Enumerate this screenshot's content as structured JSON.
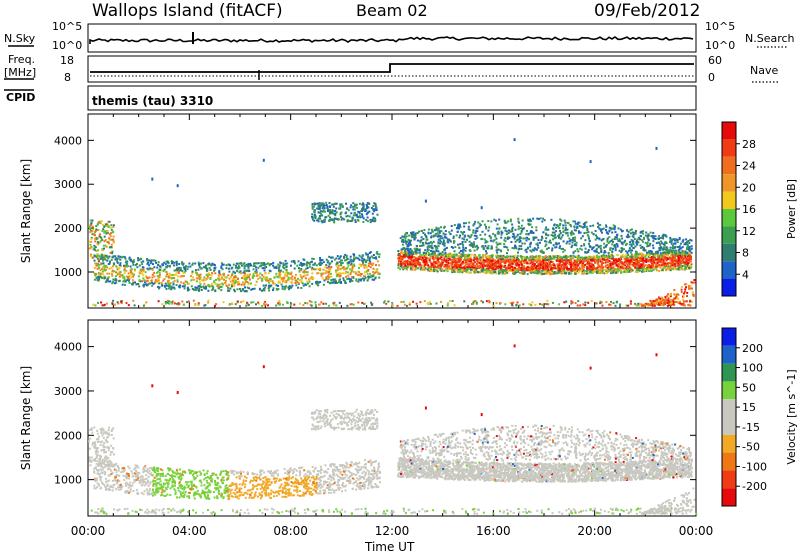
{
  "header": {
    "station": "Wallops Island (fitACF)",
    "beam": "Beam 02",
    "date": "09/Feb/2012"
  },
  "panels": {
    "nsky_label": "N.Sky",
    "nsearch_label": "N.Search",
    "nsky_ticks": [
      "10^5",
      "10^0"
    ],
    "nsky_right_ticks": [
      "10^5",
      "10^0"
    ],
    "freq_label": "Freq.",
    "freq_unit": "[MHz]",
    "freq_ticks": [
      "18",
      "8"
    ],
    "nave_label": "Nave",
    "nave_ticks": [
      "60",
      "0"
    ],
    "cpid_label": "CPID",
    "cpid_value": "themis (tau) 3310"
  },
  "chart_data": [
    {
      "type": "heatmap",
      "title": "",
      "ylabel": "Slant Range [km]",
      "xlabel": "Time UT",
      "x_ticks": [
        "00:00",
        "04:00",
        "08:00",
        "12:00",
        "16:00",
        "20:00",
        "00:00"
      ],
      "y_ticks": [
        1000,
        2000,
        3000,
        4000
      ],
      "ylim": [
        180,
        4600
      ],
      "xlim_hours": [
        0,
        24
      ],
      "colorbar": {
        "label": "Power [dB]",
        "ticks": [
          "28",
          "24",
          "20",
          "16",
          "12",
          "8",
          "4"
        ],
        "colors": [
          "#0a1ee6",
          "#1e64c8",
          "#2e7d6e",
          "#3aa050",
          "#5cc83c",
          "#f0c81e",
          "#f09628",
          "#f06e1e",
          "#f03c14",
          "#e60a0a"
        ]
      },
      "bands": [
        {
          "t0": 0.2,
          "t1": 11.5,
          "r0": 700,
          "r1": 1500,
          "level": "mid"
        },
        {
          "t0": 12.2,
          "t1": 23.8,
          "r0": 950,
          "r1": 1450,
          "level": "high"
        }
      ]
    },
    {
      "type": "heatmap",
      "title": "",
      "ylabel": "Slant Range [km]",
      "xlabel": "Time UT",
      "x_ticks": [
        "00:00",
        "04:00",
        "08:00",
        "12:00",
        "16:00",
        "20:00",
        "00:00"
      ],
      "y_ticks": [
        1000,
        2000,
        3000,
        4000
      ],
      "ylim": [
        180,
        4600
      ],
      "xlim_hours": [
        0,
        24
      ],
      "colorbar": {
        "label": "Velocity [m s^-1]",
        "ticks": [
          "200",
          "100",
          "50",
          "15",
          "-15",
          "-50",
          "-100",
          "-200"
        ],
        "colors": [
          "#e60a0a",
          "#f03c14",
          "#f07814",
          "#f0aa28",
          "#c8c8c0",
          "#c8c8c0",
          "#78d23c",
          "#2e9650",
          "#1e64c8",
          "#0a1ee6"
        ]
      }
    }
  ],
  "footer": {
    "xlabel": "Time UT"
  }
}
